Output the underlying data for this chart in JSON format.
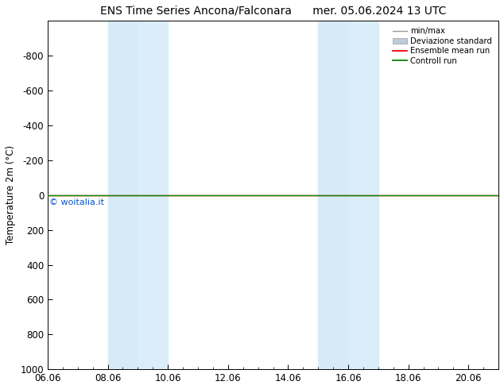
{
  "title_left": "ENS Time Series Ancona/Falconara",
  "title_right": "mer. 05.06.2024 13 UTC",
  "ylabel": "Temperature 2m (°C)",
  "xlim": [
    6.06,
    21.06
  ],
  "ylim_bottom": 1000,
  "ylim_top": -1000,
  "yticks": [
    -800,
    -600,
    -400,
    -200,
    0,
    200,
    400,
    600,
    800,
    1000
  ],
  "xticks": [
    6.06,
    8.06,
    10.06,
    12.06,
    14.06,
    16.06,
    18.06,
    20.06
  ],
  "xticklabels": [
    "06.06",
    "08.06",
    "10.06",
    "12.06",
    "14.06",
    "16.06",
    "18.06",
    "20.06"
  ],
  "shaded_regions": [
    [
      8.06,
      9.06
    ],
    [
      9.06,
      10.06
    ],
    [
      15.06,
      16.06
    ],
    [
      16.06,
      17.06
    ]
  ],
  "shaded_colors": [
    "#d6eaf8",
    "#daedf9",
    "#d6eaf8",
    "#daedf9"
  ],
  "horizontal_line_y": 0,
  "ensemble_mean_color": "#ff0000",
  "control_color": "#008800",
  "watermark": "© woitalia.it",
  "watermark_color": "#0055cc",
  "background_color": "#ffffff",
  "legend_labels": [
    "min/max",
    "Deviazione standard",
    "Ensemble mean run",
    "Controll run"
  ],
  "minmax_color": "#999999",
  "std_color": "#bbccdd",
  "title_fontsize": 10,
  "axis_fontsize": 8.5
}
